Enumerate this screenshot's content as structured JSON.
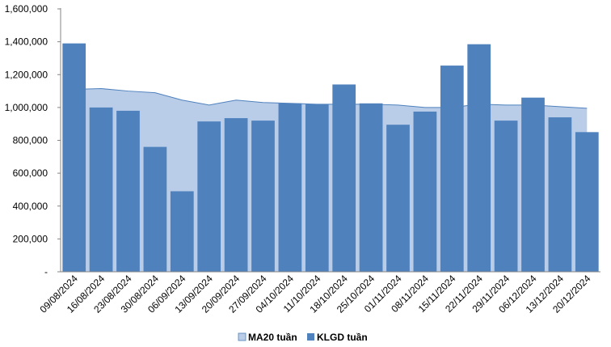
{
  "chart_data": {
    "type": "bar",
    "categories": [
      "09/08/2024",
      "16/08/2024",
      "23/08/2024",
      "30/08/2024",
      "06/09/2024",
      "13/09/2024",
      "20/09/2024",
      "27/09/2024",
      "04/10/2024",
      "11/10/2024",
      "18/10/2024",
      "25/10/2024",
      "01/11/2024",
      "08/11/2024",
      "15/11/2024",
      "22/11/2024",
      "29/11/2024",
      "06/12/2024",
      "13/12/2024",
      "20/12/2024"
    ],
    "series": [
      {
        "name": "MA20 tuần",
        "kind": "area",
        "color": "#b9cde8",
        "line_color": "#4f81bd",
        "values": [
          1110000,
          1115000,
          1100000,
          1090000,
          1045000,
          1015000,
          1045000,
          1030000,
          1025000,
          1020000,
          1020000,
          1020000,
          1015000,
          1000000,
          1000000,
          1020000,
          1015000,
          1015000,
          1005000,
          995000
        ]
      },
      {
        "name": "KLGD tuần",
        "kind": "bar",
        "color": "#4f81bd",
        "values": [
          1390000,
          1000000,
          980000,
          760000,
          490000,
          915000,
          935000,
          920000,
          1025000,
          1020000,
          1140000,
          1025000,
          895000,
          975000,
          1255000,
          1385000,
          920000,
          1060000,
          940000,
          850000
        ]
      }
    ],
    "ylim": [
      0,
      1600000
    ],
    "yticks": [
      "-",
      "200,000",
      "400,000",
      "600,000",
      "800,000",
      "1,000,000",
      "1,200,000",
      "1,400,000",
      "1,600,000"
    ],
    "grid": false,
    "legend_position": "bottom"
  }
}
